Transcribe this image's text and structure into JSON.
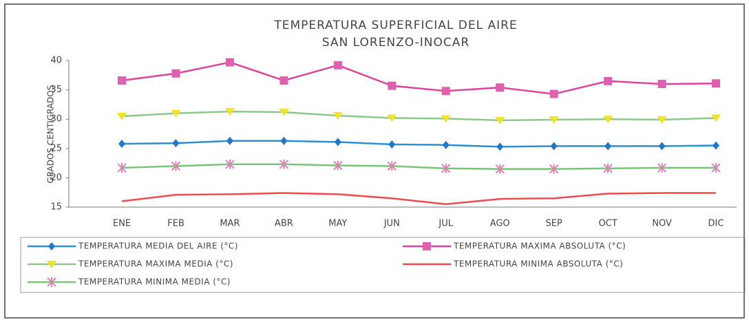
{
  "chart_data": {
    "type": "line",
    "title": "TEMPERATURA SUPERFICIAL DEL AIRE",
    "subtitle": "SAN LORENZO-INOCAR",
    "y_label": "GRADOS CENTIGRADOS",
    "categories": [
      "ENE",
      "FEB",
      "MAR",
      "ABR",
      "MAY",
      "JUN",
      "JUL",
      "AGO",
      "SEP",
      "OCT",
      "NOV",
      "DIC"
    ],
    "ylim": [
      15,
      40
    ],
    "yticks": [
      15,
      20,
      25,
      30,
      35,
      40
    ],
    "series": [
      {
        "name": "TEMPERATURA MEDIA DEL AIRE (°C)",
        "color": "#2a8fd4",
        "marker": "diamond",
        "marker_color": "#1f78c8",
        "values": [
          25.8,
          25.9,
          26.3,
          26.3,
          26.1,
          25.7,
          25.6,
          25.3,
          25.4,
          25.4,
          25.4,
          25.5
        ]
      },
      {
        "name": "TEMPERATURA MAXIMA ABSOLUTA (°C)",
        "color": "#e0449a",
        "marker": "square",
        "marker_color": "#e060b0",
        "values": [
          36.6,
          37.8,
          39.7,
          36.6,
          39.2,
          35.7,
          34.8,
          35.4,
          34.3,
          36.5,
          36.0,
          36.1
        ]
      },
      {
        "name": "TEMPERATURA MAXIMA MEDIA (°C)",
        "color": "#8cc88c",
        "marker": "triangle",
        "marker_color": "#f2e22a",
        "values": [
          30.5,
          31.0,
          31.3,
          31.2,
          30.6,
          30.2,
          30.1,
          29.8,
          29.9,
          30.0,
          29.9,
          30.2
        ]
      },
      {
        "name": "TEMPERATURA MINIMA ABSOLUTA (°C)",
        "color": "#f04a50",
        "marker": "none",
        "marker_color": "#f04a50",
        "values": [
          16.0,
          17.1,
          17.2,
          17.4,
          17.2,
          16.5,
          15.5,
          16.4,
          16.5,
          17.3,
          17.4,
          17.4
        ]
      },
      {
        "name": "TEMPERATURA MINIMA MEDIA (°C)",
        "color": "#78c478",
        "marker": "cross",
        "marker_color": "#e080b8",
        "values": [
          21.7,
          22.0,
          22.3,
          22.3,
          22.1,
          22.0,
          21.6,
          21.5,
          21.5,
          21.6,
          21.7,
          21.7
        ]
      }
    ]
  }
}
